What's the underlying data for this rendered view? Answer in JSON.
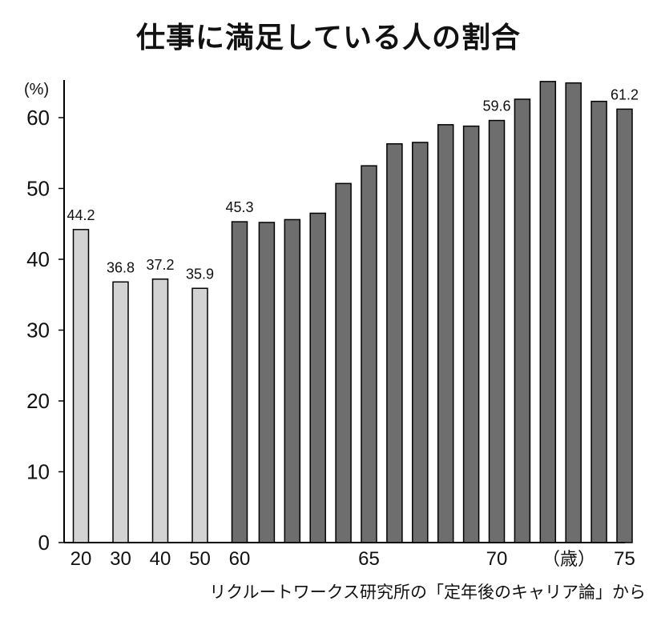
{
  "title": "仕事に満足している人の割合",
  "source": "リクルートワークス研究所の「定年後のキャリア論」から",
  "chart_data": {
    "type": "bar",
    "title": "仕事に満足している人の割合",
    "ylabel": "(%)",
    "xlabel": "（歳）",
    "ylim": [
      0,
      65
    ],
    "yticks": [
      0,
      10,
      20,
      30,
      40,
      50,
      60
    ],
    "grid": false,
    "colors": {
      "young": "#d3d3d3",
      "senior": "#6e6e6e",
      "stroke": "#000000"
    },
    "categories": [
      20,
      30,
      40,
      50,
      60,
      61,
      62,
      63,
      64,
      65,
      66,
      67,
      68,
      69,
      70,
      71,
      72,
      73,
      74,
      75
    ],
    "x_tick_labels": [
      "20",
      "30",
      "40",
      "50",
      "60",
      "65",
      "70",
      "75"
    ],
    "values": [
      44.2,
      36.8,
      37.2,
      35.9,
      45.3,
      45.2,
      45.6,
      46.5,
      50.7,
      53.2,
      56.3,
      56.5,
      59.0,
      58.8,
      59.6,
      62.6,
      65.1,
      64.9,
      62.3,
      61.2
    ],
    "data_labels": [
      {
        "x": 20,
        "text": "44.2"
      },
      {
        "x": 30,
        "text": "36.8"
      },
      {
        "x": 40,
        "text": "37.2"
      },
      {
        "x": 50,
        "text": "35.9"
      },
      {
        "x": 60,
        "text": "45.3"
      },
      {
        "x": 70,
        "text": "59.6"
      },
      {
        "x": 75,
        "text": "61.2"
      }
    ]
  }
}
